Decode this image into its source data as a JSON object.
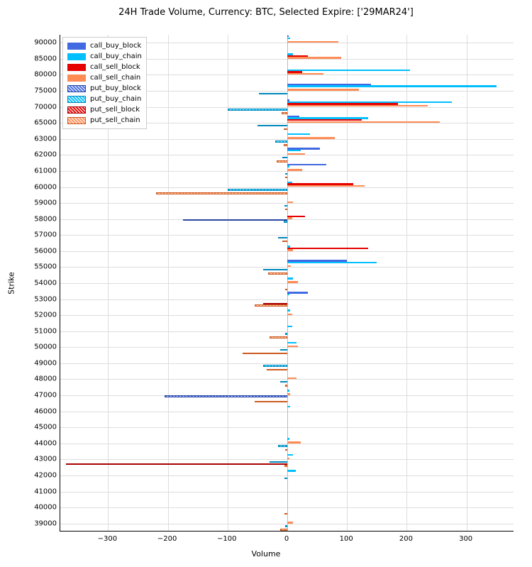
{
  "chart": {
    "type": "bar",
    "orientation": "horizontal",
    "title": "24H Trade Volume, Currency: BTC, Selected Expire: ['29MAR24']",
    "xlabel": "Volume",
    "ylabel": "Strike",
    "xlim": [
      -380,
      380
    ],
    "xtick_step": 100,
    "xticks": [
      -300,
      -200,
      -100,
      0,
      100,
      200,
      300
    ],
    "background_color": "#ffffff",
    "grid_color": "#dddddd",
    "title_fontsize": 13,
    "label_fontsize": 11,
    "tick_fontsize": 10,
    "strikes": [
      90000,
      85000,
      80000,
      75000,
      70000,
      65000,
      63000,
      62000,
      61000,
      60000,
      59000,
      58000,
      57000,
      56000,
      55000,
      54000,
      53000,
      52000,
      51000,
      50000,
      49000,
      48000,
      47000,
      46000,
      45000,
      44000,
      43000,
      42000,
      41000,
      40000,
      39000
    ],
    "series": [
      {
        "key": "call_buy_block",
        "label": "call_buy_block",
        "color": "#4169e1",
        "hatched": false,
        "border": "#4169e1",
        "sign": 1
      },
      {
        "key": "call_buy_chain",
        "label": "call_buy_chain",
        "color": "#00bfff",
        "hatched": false,
        "border": "#00bfff",
        "sign": 1
      },
      {
        "key": "call_sell_block",
        "label": "call_sell_block",
        "color": "#e60000",
        "hatched": false,
        "border": "#e60000",
        "sign": 1
      },
      {
        "key": "call_sell_chain",
        "label": "call_sell_chain",
        "color": "#ff8c55",
        "hatched": false,
        "border": "#ff8c55",
        "sign": 1
      },
      {
        "key": "put_buy_block",
        "label": "put_buy_block",
        "color": "#4169e1",
        "hatched": true,
        "border": "#2a47a5",
        "sign": -1
      },
      {
        "key": "put_buy_chain",
        "label": "put_buy_chain",
        "color": "#00bfff",
        "hatched": true,
        "border": "#0088bb",
        "sign": -1
      },
      {
        "key": "put_sell_block",
        "label": "put_sell_block",
        "color": "#e60000",
        "hatched": true,
        "border": "#aa0000",
        "sign": -1
      },
      {
        "key": "put_sell_chain",
        "label": "put_sell_chain",
        "color": "#ff8c55",
        "hatched": true,
        "border": "#cc5a20",
        "sign": -1
      }
    ],
    "data": {
      "call_buy_block": [
        2,
        0,
        0,
        140,
        3,
        20,
        0,
        55,
        65,
        0,
        0,
        0,
        0,
        0,
        100,
        0,
        35,
        0,
        0,
        0,
        0,
        0,
        0,
        0,
        0,
        0,
        0,
        0,
        0,
        0,
        0
      ],
      "call_buy_chain": [
        5,
        10,
        205,
        350,
        275,
        135,
        38,
        22,
        4,
        8,
        0,
        0,
        0,
        5,
        150,
        10,
        4,
        5,
        8,
        15,
        0,
        0,
        4,
        5,
        0,
        4,
        10,
        14,
        0,
        0,
        0
      ],
      "call_sell_block": [
        0,
        35,
        25,
        0,
        185,
        125,
        0,
        0,
        0,
        110,
        0,
        30,
        0,
        135,
        0,
        0,
        0,
        0,
        0,
        0,
        0,
        0,
        0,
        0,
        0,
        0,
        0,
        0,
        0,
        0,
        0
      ],
      "call_sell_chain": [
        85,
        90,
        60,
        120,
        235,
        255,
        80,
        30,
        25,
        130,
        10,
        8,
        0,
        10,
        6,
        18,
        0,
        8,
        0,
        18,
        0,
        15,
        5,
        0,
        0,
        22,
        4,
        0,
        0,
        0,
        10
      ],
      "put_buy_block": [
        0,
        0,
        0,
        0,
        0,
        0,
        0,
        0,
        0,
        0,
        0,
        175,
        0,
        0,
        0,
        0,
        0,
        0,
        0,
        0,
        0,
        0,
        205,
        0,
        0,
        0,
        0,
        0,
        0,
        0,
        0
      ],
      "put_buy_chain": [
        0,
        0,
        0,
        48,
        100,
        50,
        20,
        8,
        4,
        100,
        5,
        6,
        15,
        0,
        40,
        0,
        0,
        0,
        4,
        12,
        40,
        12,
        0,
        0,
        0,
        15,
        30,
        5,
        0,
        0,
        4
      ],
      "put_sell_block": [
        0,
        0,
        0,
        0,
        0,
        0,
        0,
        0,
        0,
        0,
        0,
        0,
        0,
        0,
        0,
        0,
        40,
        0,
        0,
        0,
        0,
        0,
        0,
        0,
        0,
        0,
        370,
        0,
        0,
        0,
        0
      ],
      "put_sell_chain": [
        0,
        0,
        0,
        0,
        10,
        6,
        6,
        18,
        4,
        220,
        4,
        0,
        8,
        0,
        32,
        4,
        55,
        0,
        30,
        75,
        35,
        4,
        55,
        0,
        0,
        4,
        5,
        0,
        0,
        5,
        12
      ]
    }
  }
}
